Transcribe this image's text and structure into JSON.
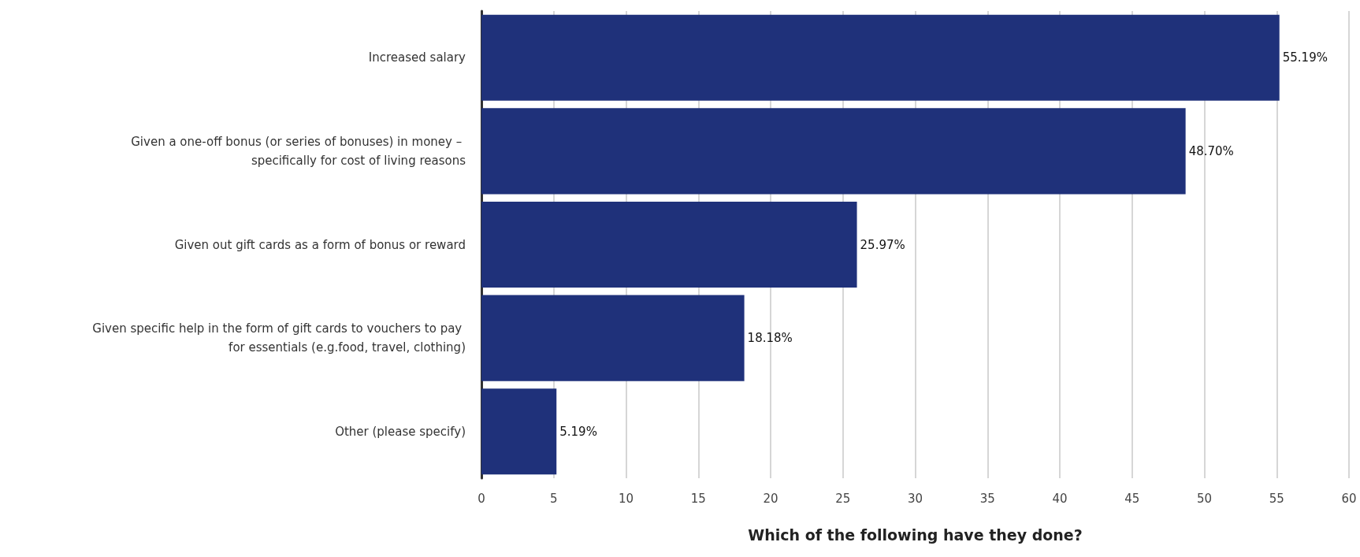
{
  "chart_data": {
    "type": "bar",
    "orientation": "horizontal",
    "xlabel": "Which of the following have they done?",
    "categories": [
      "Increased salary",
      "Given a one-off bonus (or series of bonuses) in money – specifically for cost of living reasons",
      "Given out gift cards as a form of bonus or reward",
      "Given specific help in the form of gift cards to vouchers to pay for essentials (e.g.food, travel, clothing)",
      "Other (please specify)"
    ],
    "values": [
      55.19,
      48.7,
      25.97,
      18.18,
      5.19
    ],
    "value_labels": [
      "55.19%",
      "48.70%",
      "25.97%",
      "18.18%",
      "5.19%"
    ],
    "color": "#1f317a",
    "xlim": [
      0,
      60
    ],
    "xticks": [
      0,
      5,
      10,
      15,
      20,
      25,
      30,
      35,
      40,
      45,
      50,
      55,
      60
    ],
    "grid": "x"
  }
}
